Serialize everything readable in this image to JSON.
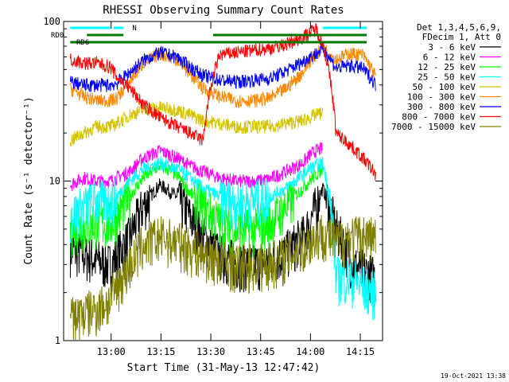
{
  "chart_data": {
    "type": "line",
    "title": "RHESSI Observing Summary Count Rates",
    "xlabel": "Start Time (31-May-13 12:47:42)",
    "ylabel": "Count Rate (s⁻¹ detector⁻¹)",
    "yscale": "log",
    "ylim": [
      1,
      100
    ],
    "xlim_minutes": [
      -2,
      94
    ],
    "y_tick_labels": [
      "1",
      "10",
      "100"
    ],
    "x_ticks": [
      {
        "label": "13:00",
        "minute": 12.3
      },
      {
        "label": "13:15",
        "minute": 27.3
      },
      {
        "label": "13:30",
        "minute": 42.3
      },
      {
        "label": "13:45",
        "minute": 57.3
      },
      {
        "label": "14:00",
        "minute": 72.3
      },
      {
        "label": "14:15",
        "minute": 87.3
      }
    ],
    "legend_header": [
      "Det 1,3,4,5,6,9,",
      "FDecim 1, Att 0"
    ],
    "legend_position": "right",
    "series": [
      {
        "name": "3 - 6 keV",
        "color": "#000000",
        "x": [
          0,
          4,
          8,
          12,
          14,
          18,
          22,
          27,
          32,
          36,
          40,
          45,
          50,
          55,
          60,
          65,
          70,
          72,
          74,
          76,
          80,
          85,
          88,
          92
        ],
        "y": [
          3.8,
          3.5,
          3.2,
          3.0,
          3.4,
          4.5,
          7,
          9.5,
          8,
          6,
          4.5,
          3.5,
          3.1,
          3.0,
          3.2,
          3.6,
          4.5,
          5.5,
          7,
          9,
          5,
          3,
          2.8,
          2.5
        ]
      },
      {
        "name": "6 - 12 keV",
        "color": "#ff00ff",
        "x": [
          0,
          4,
          8,
          12,
          14,
          18,
          22,
          27,
          32,
          36,
          40,
          45,
          50,
          55,
          60,
          65,
          70,
          72,
          74,
          76
        ],
        "y": [
          9.5,
          10.5,
          10,
          10,
          10.5,
          11.5,
          14,
          15.5,
          14,
          12.5,
          11.5,
          10.5,
          10,
          10,
          10.3,
          11.5,
          13,
          14.5,
          15.5,
          16
        ]
      },
      {
        "name": "12 - 25 keV",
        "color": "#00ff00",
        "x": [
          0,
          4,
          8,
          12,
          14,
          18,
          22,
          27,
          32,
          36,
          40,
          45,
          50,
          55,
          60,
          65,
          70,
          72,
          74,
          76
        ],
        "y": [
          5,
          5.2,
          5.5,
          5.5,
          6,
          8,
          10.5,
          12.5,
          11,
          8.5,
          7,
          5.5,
          5,
          5,
          5.5,
          7,
          9,
          10,
          11,
          12
        ]
      },
      {
        "name": "25 - 50 keV",
        "color": "#00ffff",
        "x": [
          0,
          4,
          8,
          12,
          14,
          18,
          22,
          27,
          32,
          36,
          40,
          45,
          50,
          55,
          60,
          65,
          70,
          72,
          74,
          76,
          80,
          84,
          88,
          92
        ],
        "y": [
          6,
          7,
          7.5,
          7.5,
          8,
          10,
          12,
          13,
          12,
          10.5,
          9,
          8,
          7.5,
          7.5,
          8,
          9,
          11,
          12,
          12.5,
          13,
          2.5,
          2.5,
          2.2,
          2
        ]
      },
      {
        "name": "50 - 100 keV",
        "color": "#d4c400",
        "x": [
          0,
          4,
          8,
          12,
          14,
          18,
          22,
          27,
          32,
          36,
          40,
          45,
          50,
          55,
          60,
          65,
          70,
          72,
          74,
          76
        ],
        "y": [
          18,
          20,
          22,
          22,
          23,
          26,
          28,
          29,
          28,
          26,
          24,
          23,
          22,
          22,
          22,
          23,
          24,
          25,
          26,
          27
        ]
      },
      {
        "name": "100 - 300 keV",
        "color": "#ff8800",
        "x": [
          0,
          4,
          8,
          12,
          14,
          18,
          22,
          27,
          32,
          36,
          40,
          45,
          50,
          55,
          60,
          65,
          70,
          72,
          74,
          76,
          80,
          84,
          88,
          92
        ],
        "y": [
          38,
          34,
          32,
          32,
          33,
          42,
          55,
          63,
          58,
          47,
          38,
          34,
          32,
          32,
          33,
          38,
          48,
          56,
          62,
          68,
          58,
          63,
          62,
          45
        ]
      },
      {
        "name": "300 - 800 keV",
        "color": "#0000ff",
        "x": [
          0,
          4,
          8,
          12,
          14,
          18,
          22,
          27,
          32,
          36,
          40,
          45,
          50,
          55,
          60,
          65,
          70,
          72,
          74,
          76,
          80,
          84,
          88,
          92
        ],
        "y": [
          42,
          40,
          40,
          40,
          41,
          48,
          57,
          64,
          60,
          52,
          46,
          43,
          42,
          43,
          44,
          49,
          56,
          60,
          63,
          68,
          51,
          53,
          51,
          40
        ]
      },
      {
        "name": "800 - 7000 keV",
        "color": "#ff0000",
        "x": [
          0,
          4,
          8,
          12,
          14,
          18,
          22,
          27,
          32,
          36,
          40,
          45,
          50,
          55,
          60,
          65,
          70,
          72,
          74,
          76,
          80,
          84,
          88,
          92
        ],
        "y": [
          58,
          55,
          55,
          52,
          45,
          38,
          30,
          25,
          22,
          20,
          18,
          62,
          64,
          66,
          68,
          72,
          80,
          85,
          90,
          72,
          20,
          17,
          14,
          11
        ]
      },
      {
        "name": "7000 - 15000 keV",
        "color": "#808000",
        "x": [
          0,
          4,
          8,
          12,
          14,
          18,
          22,
          27,
          32,
          36,
          40,
          45,
          50,
          55,
          60,
          65,
          70,
          72,
          74,
          76,
          80,
          84,
          88,
          92
        ],
        "y": [
          1.4,
          1.5,
          1.6,
          1.8,
          2.2,
          3.0,
          4.0,
          4.5,
          4.2,
          3.8,
          3.5,
          3.2,
          3.0,
          3.0,
          3.1,
          3.4,
          3.9,
          4.2,
          4.5,
          4.8,
          4.2,
          4.5,
          4.6,
          4.5
        ]
      }
    ],
    "flag_bars": [
      {
        "label": "RD0",
        "color": "#007700",
        "row": 1,
        "spans": [
          [
            5,
            16
          ],
          [
            43,
            71
          ],
          [
            70,
            96
          ]
        ]
      },
      {
        "label": "RD6",
        "color": "#007700",
        "row": 2,
        "spans": [
          [
            0,
            92
          ]
        ]
      },
      {
        "label": "N",
        "color": "#00ffff",
        "row": 0,
        "spans": [
          [
            0,
            12
          ],
          [
            13,
            16
          ],
          [
            76,
            92
          ]
        ]
      }
    ]
  },
  "footer": {
    "timestamp": "19-Oct-2021 13:38"
  }
}
